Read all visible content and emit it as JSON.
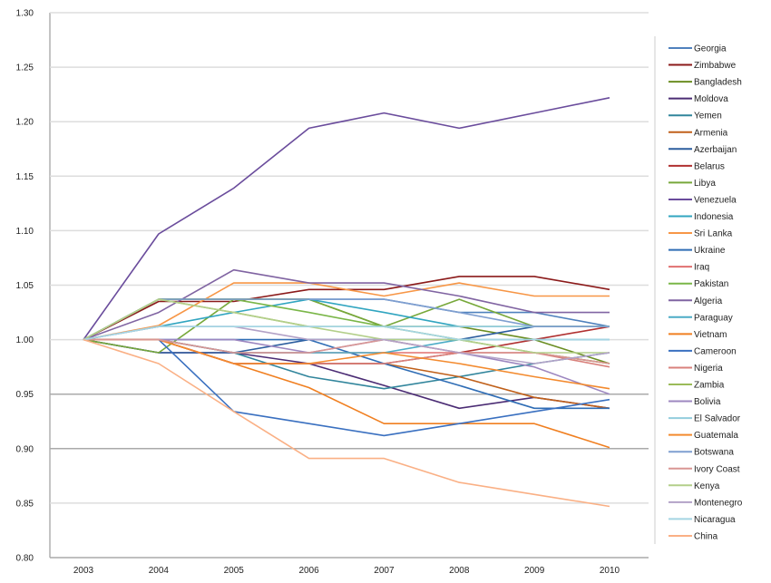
{
  "chart_data": {
    "type": "line",
    "title": "",
    "xlabel": "",
    "ylabel": "",
    "x": [
      "2003",
      "2004",
      "2005",
      "2006",
      "2007",
      "2008",
      "2009",
      "2010"
    ],
    "ylim": [
      0.8,
      1.3
    ],
    "yticks": [
      "0.80",
      "0.85",
      "0.90",
      "0.95",
      "1.00",
      "1.05",
      "1.10",
      "1.15",
      "1.20",
      "1.25",
      "1.30"
    ],
    "grid": true,
    "legend": "right",
    "series": [
      {
        "name": "Georgia",
        "color": "#4f81bd",
        "values": [
          1.0,
          1.037,
          1.037,
          1.037,
          1.037,
          1.025,
          1.025,
          1.012
        ]
      },
      {
        "name": "Zimbabwe",
        "color": "#8b1a1a",
        "values": [
          1.0,
          1.035,
          1.035,
          1.046,
          1.046,
          1.058,
          1.058,
          1.046
        ]
      },
      {
        "name": "Bangladesh",
        "color": "#6b8e23",
        "values": [
          1.0,
          1.037,
          1.037,
          1.037,
          1.012,
          1.012,
          1.0,
          0.978
        ]
      },
      {
        "name": "Moldova",
        "color": "#4b2c74",
        "values": [
          1.0,
          0.988,
          0.988,
          0.978,
          0.958,
          0.937,
          0.947,
          0.937
        ]
      },
      {
        "name": "Yemen",
        "color": "#31859c",
        "values": [
          1.0,
          1.0,
          0.988,
          0.966,
          0.955,
          0.966,
          0.978,
          0.988
        ]
      },
      {
        "name": "Armenia",
        "color": "#c0601a",
        "values": [
          1.0,
          1.0,
          0.978,
          0.978,
          0.978,
          0.966,
          0.947,
          0.937
        ]
      },
      {
        "name": "Azerbaijan",
        "color": "#2c5d9e",
        "values": [
          1.0,
          0.988,
          0.988,
          1.0,
          1.0,
          1.0,
          1.012,
          1.012
        ]
      },
      {
        "name": "Belarus",
        "color": "#b03030",
        "values": [
          1.0,
          1.0,
          0.978,
          0.978,
          0.978,
          0.988,
          1.0,
          1.012
        ]
      },
      {
        "name": "Libya",
        "color": "#77a83a",
        "values": [
          1.0,
          0.988,
          1.037,
          1.037,
          1.012,
          1.037,
          1.012,
          1.012
        ]
      },
      {
        "name": "Venezuela",
        "color": "#6a4c9c",
        "values": [
          1.0,
          1.097,
          1.139,
          1.194,
          1.208,
          1.194,
          1.208,
          1.222
        ]
      },
      {
        "name": "Indonesia",
        "color": "#31a5c0",
        "values": [
          1.0,
          1.012,
          1.025,
          1.037,
          1.025,
          1.012,
          1.012,
          1.012
        ]
      },
      {
        "name": "Sri Lanka",
        "color": "#f79646",
        "values": [
          1.0,
          1.013,
          1.052,
          1.052,
          1.04,
          1.052,
          1.04,
          1.04
        ]
      },
      {
        "name": "Ukraine",
        "color": "#2f6db5",
        "values": [
          1.0,
          1.0,
          1.0,
          1.0,
          0.978,
          0.958,
          0.937,
          0.937
        ]
      },
      {
        "name": "Iraq",
        "color": "#e07070",
        "values": [
          1.0,
          1.0,
          0.988,
          0.988,
          0.988,
          0.988,
          0.988,
          0.978
        ]
      },
      {
        "name": "Pakistan",
        "color": "#7ab648",
        "values": [
          1.0,
          1.037,
          1.037,
          1.025,
          1.012,
          1.0,
          0.988,
          0.978
        ]
      },
      {
        "name": "Algeria",
        "color": "#8064a2",
        "values": [
          1.0,
          1.025,
          1.064,
          1.052,
          1.052,
          1.04,
          1.025,
          1.025
        ]
      },
      {
        "name": "Paraguay",
        "color": "#4bacc6",
        "values": [
          1.0,
          1.0,
          0.988,
          0.988,
          0.988,
          1.0,
          1.0,
          1.0
        ]
      },
      {
        "name": "Vietnam",
        "color": "#f07f20",
        "values": [
          1.0,
          1.0,
          0.978,
          0.956,
          0.923,
          0.923,
          0.923,
          0.901
        ]
      },
      {
        "name": "Cameroon",
        "color": "#3a70c0",
        "values": [
          1.0,
          1.0,
          0.934,
          0.923,
          0.912,
          0.923,
          0.934,
          0.945
        ]
      },
      {
        "name": "Nigeria",
        "color": "#d9817c",
        "values": [
          1.0,
          1.0,
          0.978,
          0.978,
          0.978,
          0.988,
          0.988,
          0.975
        ]
      },
      {
        "name": "Zambia",
        "color": "#9bbb59",
        "values": [
          1.0,
          1.037,
          1.025,
          1.012,
          1.012,
          1.012,
          1.012,
          1.012
        ]
      },
      {
        "name": "Bolivia",
        "color": "#9d87c0",
        "values": [
          1.0,
          1.0,
          1.0,
          0.988,
          1.0,
          0.988,
          0.975,
          0.95
        ]
      },
      {
        "name": "El Salvador",
        "color": "#93cddd",
        "values": [
          1.0,
          1.012,
          1.012,
          1.012,
          1.012,
          1.012,
          1.012,
          1.012
        ]
      },
      {
        "name": "Guatemala",
        "color": "#f38a2e",
        "values": [
          1.0,
          1.0,
          0.978,
          0.978,
          0.988,
          0.978,
          0.966,
          0.955
        ]
      },
      {
        "name": "Botswana",
        "color": "#7f9fd0",
        "values": [
          1.0,
          1.037,
          1.037,
          1.037,
          1.037,
          1.025,
          1.012,
          1.012
        ]
      },
      {
        "name": "Ivory Coast",
        "color": "#d99694",
        "values": [
          1.0,
          1.0,
          0.988,
          0.988,
          1.0,
          0.988,
          0.988,
          0.978
        ]
      },
      {
        "name": "Kenya",
        "color": "#b3cf8a",
        "values": [
          1.0,
          1.037,
          1.025,
          1.012,
          1.0,
          1.0,
          0.988,
          0.988
        ]
      },
      {
        "name": "Montenegro",
        "color": "#b3a2c7",
        "values": [
          1.0,
          1.012,
          1.012,
          1.0,
          1.0,
          0.988,
          0.978,
          0.988
        ]
      },
      {
        "name": "Nicaragua",
        "color": "#a5d5e3",
        "values": [
          1.0,
          1.012,
          1.012,
          1.012,
          1.012,
          1.0,
          1.0,
          1.0
        ]
      },
      {
        "name": "China",
        "color": "#fab085",
        "values": [
          1.0,
          0.978,
          0.934,
          0.891,
          0.891,
          0.869,
          0.858,
          0.847
        ]
      }
    ]
  }
}
